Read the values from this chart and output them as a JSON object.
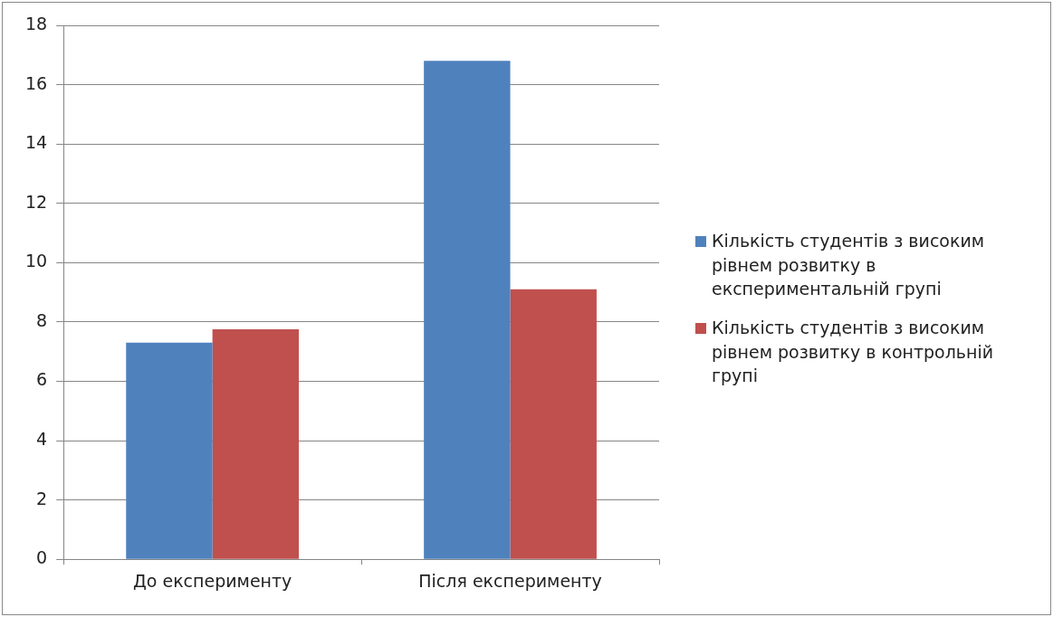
{
  "chart_data": {
    "type": "bar",
    "categories": [
      "До експерименту",
      "Після експерименту"
    ],
    "series": [
      {
        "name": "Кількість студентів з високим рівнем розвитку в експериментальній групі",
        "color": "#4f81bd",
        "values": [
          7.3,
          16.8
        ]
      },
      {
        "name": "Кількість студентів з високим рівнем розвитку в контрольній групі",
        "color": "#c0504d",
        "values": [
          7.75,
          9.1
        ]
      }
    ],
    "ylim": [
      0,
      18
    ],
    "yticks": [
      0,
      2,
      4,
      6,
      8,
      10,
      12,
      14,
      16,
      18
    ],
    "grid": "y",
    "legend": "right"
  }
}
